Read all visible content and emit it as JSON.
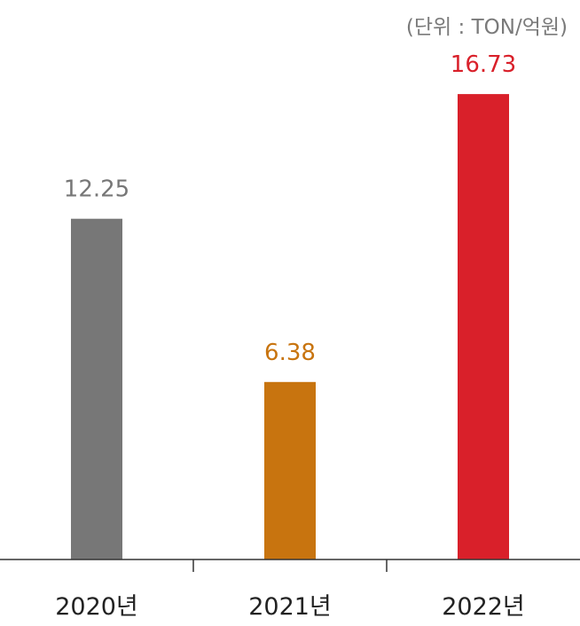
{
  "unit_note": "(단위 : TON/억원)",
  "chart_data": {
    "type": "bar",
    "categories": [
      "2020년",
      "2021년",
      "2022년"
    ],
    "values": [
      12.25,
      6.38,
      16.73
    ],
    "value_labels": [
      "12.25",
      "6.38",
      "16.73"
    ],
    "colors": [
      "#777777",
      "#c8740f",
      "#d9202a"
    ],
    "axis_color": "#333333",
    "ylim": [
      0,
      18.2
    ],
    "grid": false
  }
}
